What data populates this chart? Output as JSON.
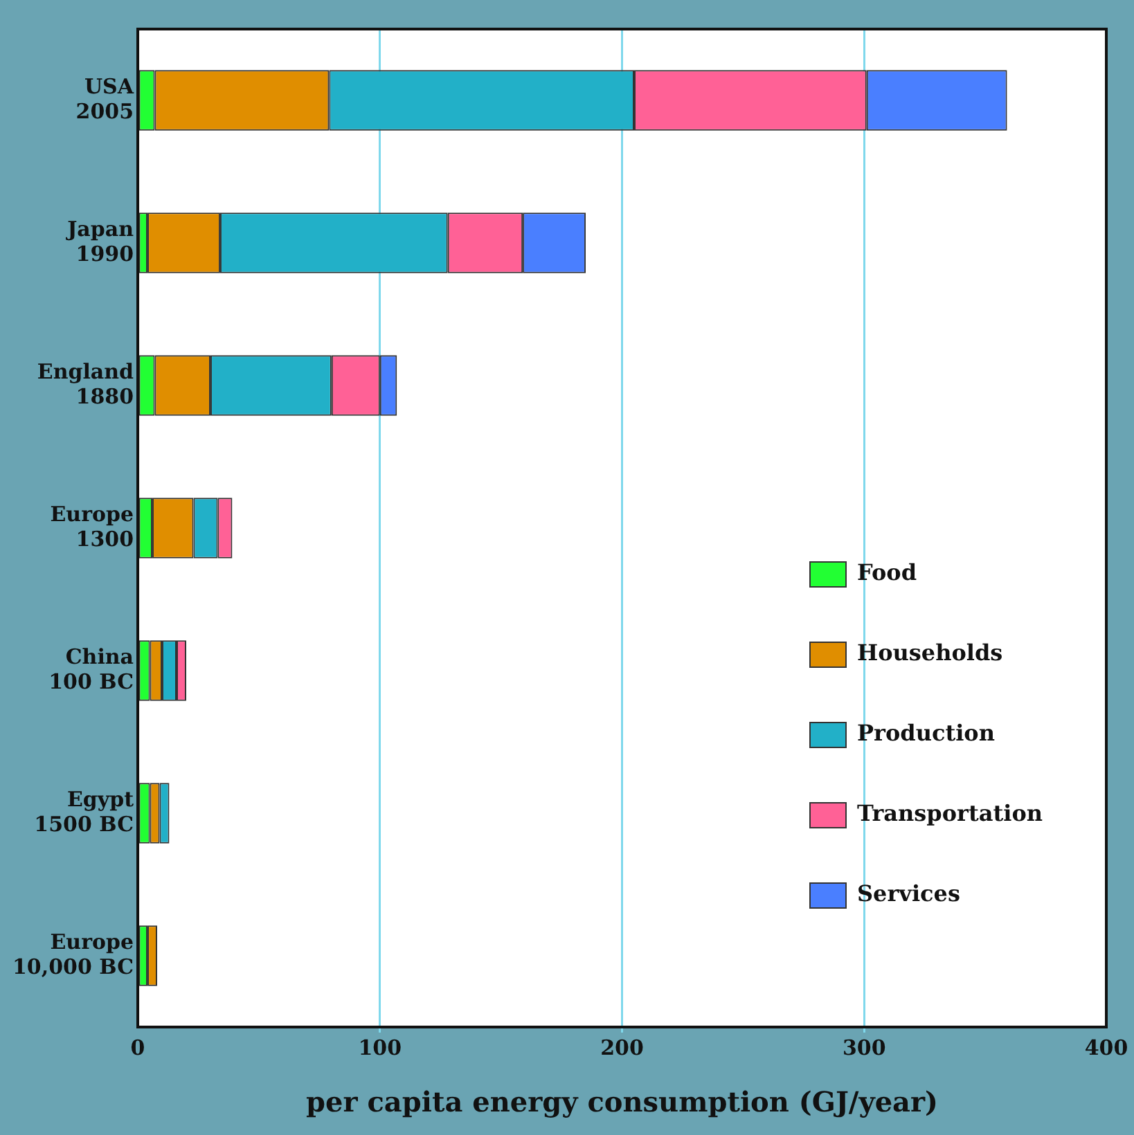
{
  "chart_data": {
    "type": "bar",
    "orientation": "horizontal",
    "stacked": true,
    "categories": [
      "USA 2005",
      "Japan 1990",
      "England 1880",
      "Europe 1300",
      "China 100 BC",
      "Egypt 1500 BC",
      "Europe 10,000 BC"
    ],
    "series": [
      {
        "name": "Food",
        "color": "#22ff33",
        "values": [
          7,
          4,
          7,
          6,
          5,
          5,
          4
        ]
      },
      {
        "name": "Households",
        "color": "#e08e00",
        "values": [
          72,
          30,
          23,
          17,
          5,
          4,
          4
        ]
      },
      {
        "name": "Production",
        "color": "#22b0c8",
        "values": [
          126,
          94,
          50,
          10,
          6,
          4,
          null
        ]
      },
      {
        "name": "Transportation",
        "color": "#ff6196",
        "values": [
          96,
          31,
          20,
          6,
          4,
          null,
          null
        ]
      },
      {
        "name": "Services",
        "color": "#4a7fff",
        "values": [
          58,
          26,
          7,
          null,
          null,
          null,
          null
        ]
      }
    ],
    "xlabel": "per capita energy consumption (GJ/year)",
    "xlim": [
      0,
      400
    ],
    "xticks": [
      0,
      100,
      200,
      300,
      400
    ],
    "grid": "x",
    "legend": "bottom right"
  }
}
